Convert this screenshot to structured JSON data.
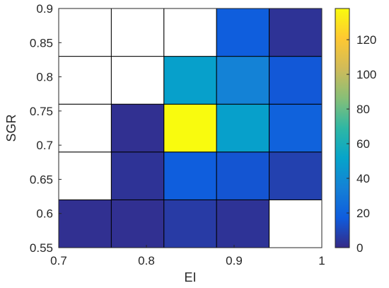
{
  "chart_data": {
    "type": "heatmap",
    "title": "",
    "xlabel": "EI",
    "ylabel": "SGR",
    "xlim": [
      0.7,
      1.0
    ],
    "ylim": [
      0.55,
      0.9
    ],
    "x_ticks": [
      "0.7",
      "0.8",
      "0.9",
      "1"
    ],
    "y_ticks": [
      "0.55",
      "0.6",
      "0.65",
      "0.7",
      "0.75",
      "0.8",
      "0.85",
      "0.9"
    ],
    "x_edges": [
      0.7,
      0.76,
      0.82,
      0.88,
      0.94,
      1.0
    ],
    "y_edges": [
      0.55,
      0.62,
      0.69,
      0.76,
      0.83,
      0.9
    ],
    "counts": [
      [
        2,
        2,
        6,
        3,
        0
      ],
      [
        0,
        3,
        18,
        15,
        8
      ],
      [
        0,
        2,
        138,
        50,
        20
      ],
      [
        0,
        0,
        50,
        35,
        16
      ],
      [
        0,
        0,
        0,
        18,
        3
      ]
    ],
    "colorbar": {
      "range": [
        0,
        138
      ],
      "ticks": [
        "0",
        "20",
        "40",
        "60",
        "80",
        "100",
        "120"
      ],
      "colormap": "parula"
    },
    "grid": true
  }
}
